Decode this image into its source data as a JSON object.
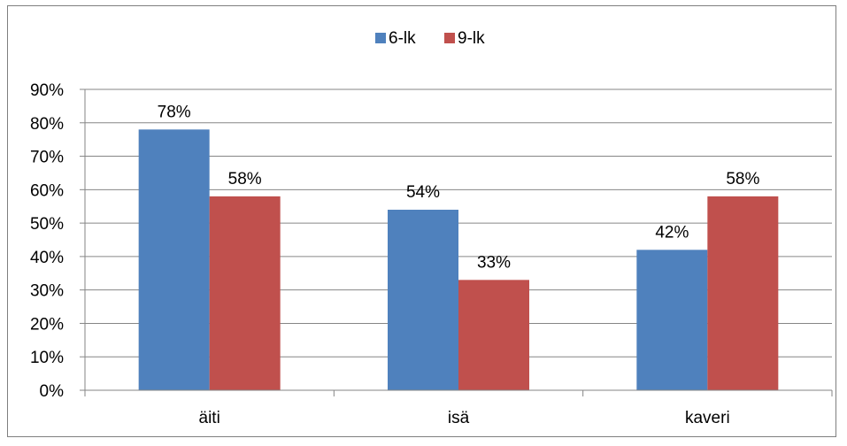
{
  "chart_data": {
    "type": "bar",
    "categories": [
      "äiti",
      "isä",
      "kaveri"
    ],
    "series": [
      {
        "name": "6-lk",
        "values": [
          78,
          54,
          42
        ],
        "labels": [
          "78%",
          "54%",
          "42%"
        ],
        "color": "#4f81bd"
      },
      {
        "name": "9-lk",
        "values": [
          58,
          33,
          58
        ],
        "labels": [
          "58%",
          "33%",
          "58%"
        ],
        "color": "#c0504d"
      }
    ],
    "ylim": [
      0,
      90
    ],
    "yticks": [
      "0%",
      "10%",
      "20%",
      "30%",
      "40%",
      "50%",
      "60%",
      "70%",
      "80%",
      "90%"
    ],
    "grid": true,
    "legend_position": "top-center"
  }
}
